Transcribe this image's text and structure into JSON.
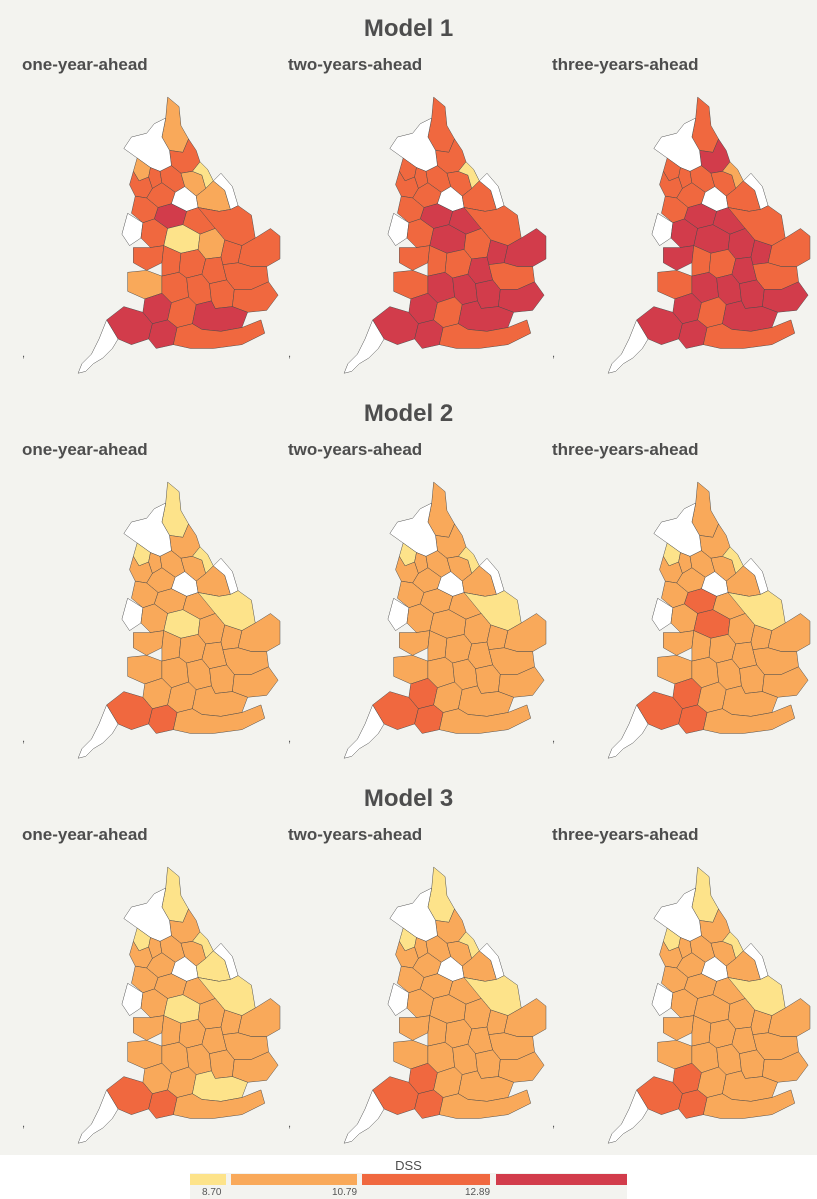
{
  "colors": {
    "level_1": "#fde38a",
    "level_2": "#f9a95a",
    "level_3": "#f0683f",
    "level_4": "#d23c4b",
    "no_data": "#ffffff"
  },
  "legend": {
    "title": "DSS",
    "breaks": [
      "8.70",
      "10.79",
      "12.89"
    ]
  },
  "map_marker": ",",
  "models": [
    {
      "title": "Model 1",
      "panels": [
        {
          "label": "one-year-ahead",
          "levels": [
            2,
            3,
            0,
            2,
            3,
            3,
            2,
            1,
            3,
            3,
            0,
            2,
            0,
            3,
            4,
            3,
            3,
            0,
            3,
            1,
            2,
            3,
            3,
            3,
            3,
            3,
            3,
            3,
            2,
            3,
            3,
            3,
            3,
            4,
            3,
            4,
            4,
            4,
            3
          ]
        },
        {
          "label": "two-years-ahead",
          "levels": [
            3,
            3,
            0,
            3,
            3,
            3,
            3,
            1,
            3,
            3,
            0,
            3,
            0,
            3,
            4,
            4,
            3,
            0,
            3,
            4,
            3,
            4,
            4,
            3,
            3,
            3,
            4,
            3,
            3,
            4,
            4,
            4,
            4,
            4,
            3,
            4,
            4,
            4,
            3
          ]
        },
        {
          "label": "three-years-ahead",
          "levels": [
            3,
            4,
            0,
            3,
            3,
            3,
            3,
            2,
            3,
            3,
            0,
            3,
            0,
            3,
            4,
            4,
            3,
            0,
            4,
            4,
            4,
            4,
            3,
            4,
            3,
            3,
            4,
            3,
            3,
            4,
            4,
            4,
            4,
            4,
            3,
            4,
            4,
            4,
            3
          ]
        }
      ]
    },
    {
      "title": "Model 2",
      "panels": [
        {
          "label": "one-year-ahead",
          "levels": [
            1,
            2,
            0,
            1,
            2,
            2,
            2,
            1,
            2,
            2,
            0,
            2,
            0,
            2,
            2,
            2,
            1,
            0,
            2,
            1,
            2,
            2,
            2,
            2,
            2,
            2,
            2,
            2,
            2,
            2,
            2,
            2,
            2,
            2,
            2,
            2,
            3,
            3,
            2
          ]
        },
        {
          "label": "two-years-ahead",
          "levels": [
            2,
            2,
            0,
            1,
            2,
            2,
            2,
            1,
            2,
            2,
            0,
            2,
            0,
            2,
            2,
            2,
            1,
            0,
            2,
            2,
            2,
            2,
            2,
            2,
            2,
            2,
            2,
            2,
            2,
            2,
            2,
            2,
            2,
            3,
            2,
            2,
            3,
            3,
            2
          ]
        },
        {
          "label": "three-years-ahead",
          "levels": [
            2,
            2,
            0,
            1,
            2,
            2,
            2,
            1,
            2,
            2,
            0,
            2,
            0,
            2,
            3,
            2,
            1,
            0,
            2,
            3,
            2,
            2,
            2,
            2,
            2,
            2,
            2,
            2,
            2,
            2,
            2,
            2,
            2,
            3,
            2,
            2,
            3,
            3,
            2
          ]
        }
      ]
    },
    {
      "title": "Model 3",
      "panels": [
        {
          "label": "one-year-ahead",
          "levels": [
            1,
            2,
            0,
            1,
            2,
            2,
            2,
            1,
            2,
            2,
            0,
            1,
            0,
            2,
            2,
            2,
            1,
            0,
            2,
            1,
            2,
            2,
            2,
            2,
            2,
            2,
            2,
            2,
            2,
            2,
            2,
            2,
            2,
            2,
            2,
            1,
            3,
            3,
            2
          ]
        },
        {
          "label": "two-years-ahead",
          "levels": [
            1,
            2,
            0,
            1,
            2,
            2,
            2,
            1,
            2,
            2,
            0,
            2,
            0,
            2,
            2,
            2,
            1,
            0,
            2,
            2,
            2,
            2,
            2,
            2,
            2,
            2,
            2,
            2,
            2,
            2,
            2,
            2,
            2,
            3,
            2,
            2,
            3,
            3,
            2
          ]
        },
        {
          "label": "three-years-ahead",
          "levels": [
            1,
            2,
            0,
            1,
            2,
            2,
            2,
            1,
            2,
            2,
            0,
            2,
            0,
            2,
            2,
            2,
            1,
            0,
            2,
            2,
            2,
            2,
            2,
            2,
            2,
            2,
            2,
            2,
            2,
            2,
            2,
            2,
            2,
            3,
            2,
            2,
            3,
            3,
            2
          ]
        }
      ]
    }
  ]
}
